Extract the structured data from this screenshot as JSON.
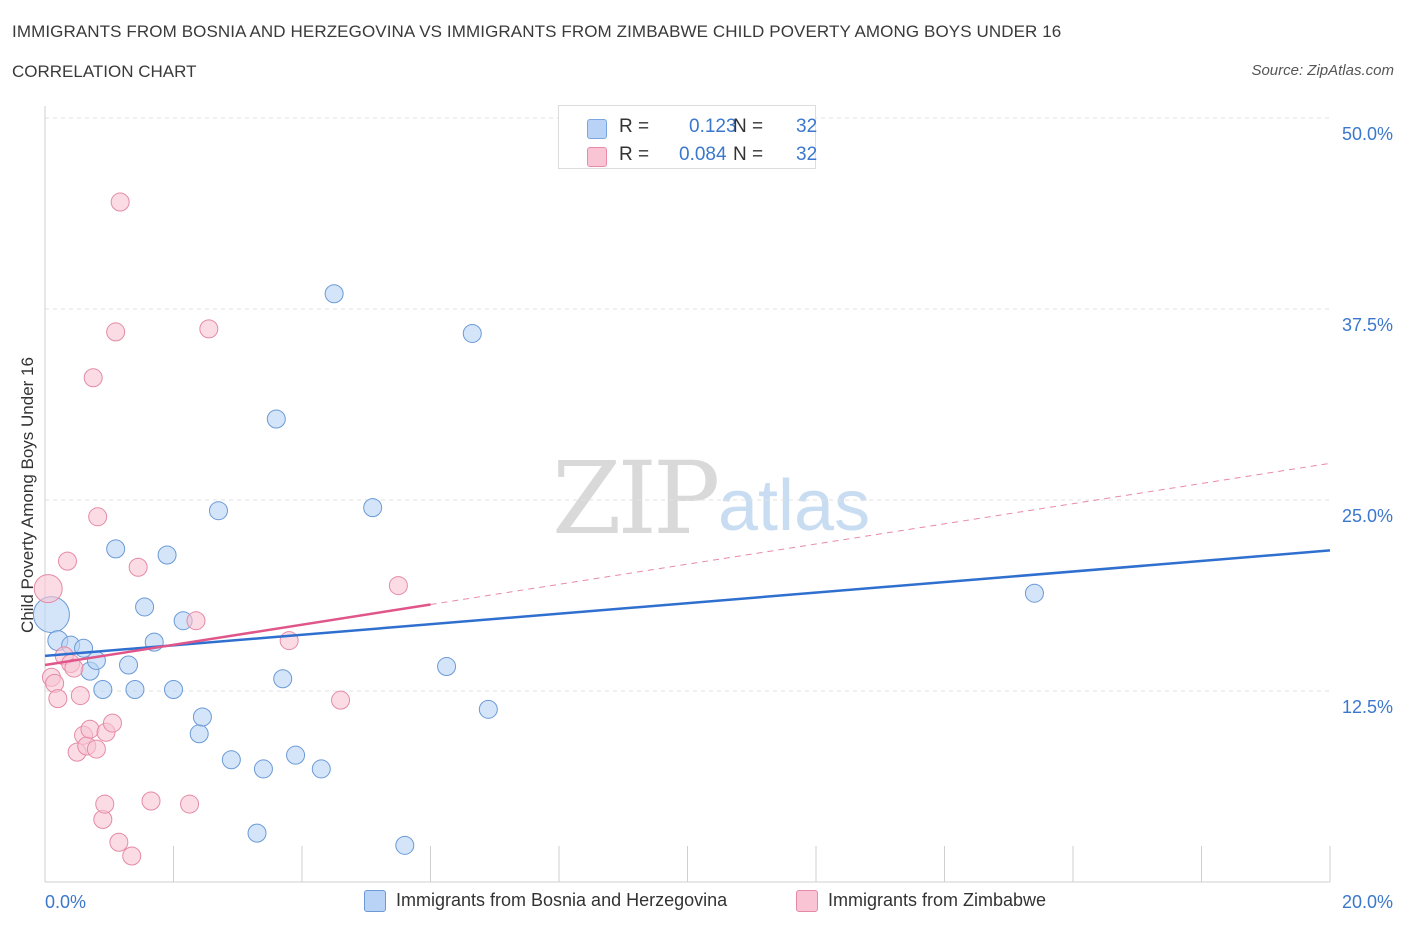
{
  "header": {
    "title": "IMMIGRANTS FROM BOSNIA AND HERZEGOVINA VS IMMIGRANTS FROM ZIMBABWE CHILD POVERTY AMONG BOYS UNDER 16",
    "subtitle": "CORRELATION CHART",
    "source": "Source: ZipAtlas.com"
  },
  "watermark": {
    "zip": "ZIP",
    "atlas": "atlas"
  },
  "legend": {
    "rows": [
      {
        "r_label": "R =",
        "r_value": "0.123",
        "n_label": "N =",
        "n_value": "32",
        "color": "#b8d3f5",
        "border": "#7aa6e0"
      },
      {
        "r_label": "R =",
        "r_value": "0.084",
        "n_label": "N =",
        "n_value": "32",
        "color": "#f9c4d4",
        "border": "#e98aa8"
      }
    ]
  },
  "chart_data": {
    "type": "scatter",
    "title": "IMMIGRANTS FROM BOSNIA AND HERZEGOVINA VS IMMIGRANTS FROM ZIMBABWE CHILD POVERTY AMONG BOYS UNDER 16",
    "xlabel": "",
    "ylabel": "Child Poverty Among Boys Under 16",
    "xlim": [
      0,
      20
    ],
    "ylim": [
      0,
      50
    ],
    "x_tick_labels": [
      {
        "value": 0,
        "label": "0.0%"
      },
      {
        "value": 20,
        "label": "20.0%"
      }
    ],
    "y_tick_labels": [
      {
        "value": 12.5,
        "label": "12.5%"
      },
      {
        "value": 25,
        "label": "25.0%"
      },
      {
        "value": 37.5,
        "label": "37.5%"
      },
      {
        "value": 50,
        "label": "50.0%"
      }
    ],
    "grid": true,
    "series": [
      {
        "name": "Immigrants from Bosnia and Herzegovina",
        "color": "#b8d3f5",
        "stroke": "#6b9ad6",
        "trend_color": "#2f6fcf",
        "trend": {
          "x0": 0,
          "y0": 14.8,
          "x1": 20,
          "y1": 21.7,
          "dashed_from": null
        },
        "points": [
          [
            0.1,
            17.5,
            18
          ],
          [
            0.2,
            15.8,
            10
          ],
          [
            0.4,
            15.5,
            9
          ],
          [
            0.6,
            15.3,
            9
          ],
          [
            0.7,
            13.8,
            9
          ],
          [
            0.8,
            14.5,
            9
          ],
          [
            0.9,
            12.6,
            9
          ],
          [
            1.1,
            21.8,
            9
          ],
          [
            1.3,
            14.2,
            9
          ],
          [
            1.4,
            12.6,
            9
          ],
          [
            1.55,
            18.0,
            9
          ],
          [
            1.7,
            15.7,
            9
          ],
          [
            1.9,
            21.4,
            9
          ],
          [
            2.0,
            12.6,
            9
          ],
          [
            2.15,
            17.1,
            9
          ],
          [
            2.4,
            9.7,
            9
          ],
          [
            2.45,
            10.8,
            9
          ],
          [
            2.7,
            24.3,
            9
          ],
          [
            2.9,
            8.0,
            9
          ],
          [
            3.3,
            3.2,
            9
          ],
          [
            3.4,
            7.4,
            9
          ],
          [
            3.6,
            30.3,
            9
          ],
          [
            3.7,
            13.3,
            9
          ],
          [
            3.9,
            8.3,
            9
          ],
          [
            4.3,
            7.4,
            9
          ],
          [
            4.5,
            38.5,
            9
          ],
          [
            5.1,
            24.5,
            9
          ],
          [
            5.6,
            2.4,
            9
          ],
          [
            6.25,
            14.1,
            9
          ],
          [
            6.65,
            35.9,
            9
          ],
          [
            6.9,
            11.3,
            9
          ],
          [
            15.4,
            18.9,
            9
          ]
        ]
      },
      {
        "name": "Immigrants from Zimbabwe",
        "color": "#f9c4d4",
        "stroke": "#e58aa6",
        "trend_color": "#e0568a",
        "trend": {
          "x0": 0,
          "y0": 14.2,
          "x1": 20,
          "y1": 27.4,
          "dashed_from": 6.0
        },
        "points": [
          [
            0.05,
            19.2,
            14
          ],
          [
            0.1,
            13.4,
            9
          ],
          [
            0.15,
            13.0,
            9
          ],
          [
            0.2,
            12.0,
            9
          ],
          [
            0.3,
            14.8,
            9
          ],
          [
            0.35,
            21.0,
            9
          ],
          [
            0.4,
            14.3,
            9
          ],
          [
            0.45,
            14.0,
            9
          ],
          [
            0.5,
            8.5,
            9
          ],
          [
            0.55,
            12.2,
            9
          ],
          [
            0.6,
            9.6,
            9
          ],
          [
            0.65,
            8.9,
            9
          ],
          [
            0.7,
            10.0,
            9
          ],
          [
            0.75,
            33.0,
            9
          ],
          [
            0.8,
            8.7,
            9
          ],
          [
            0.82,
            23.9,
            9
          ],
          [
            0.9,
            4.1,
            9
          ],
          [
            0.93,
            5.1,
            9
          ],
          [
            0.95,
            9.8,
            9
          ],
          [
            1.05,
            10.4,
            9
          ],
          [
            1.1,
            36.0,
            9
          ],
          [
            1.15,
            2.6,
            9
          ],
          [
            1.17,
            44.5,
            9
          ],
          [
            1.35,
            1.7,
            9
          ],
          [
            1.45,
            20.6,
            9
          ],
          [
            1.65,
            5.3,
            9
          ],
          [
            2.25,
            5.1,
            9
          ],
          [
            2.35,
            17.1,
            9
          ],
          [
            2.55,
            36.2,
            9
          ],
          [
            3.8,
            15.8,
            9
          ],
          [
            4.6,
            11.9,
            9
          ],
          [
            5.5,
            19.4,
            9
          ]
        ]
      }
    ]
  }
}
